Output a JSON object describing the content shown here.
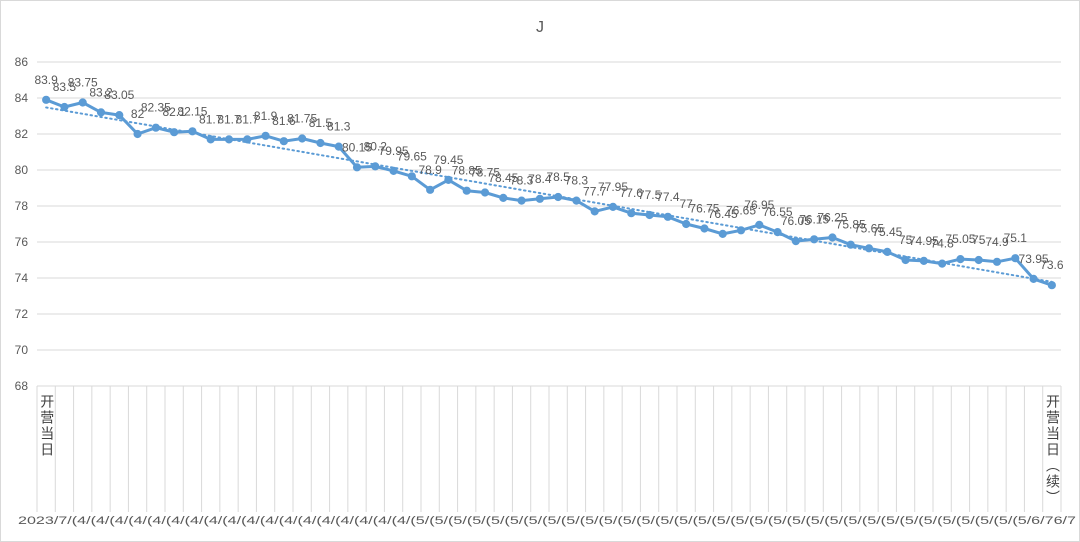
{
  "chart_data": {
    "type": "line",
    "title": "J",
    "xlabel": "",
    "ylabel": "",
    "ylim": [
      68,
      86
    ],
    "yticks": [
      68,
      70,
      72,
      74,
      76,
      78,
      80,
      82,
      84,
      86
    ],
    "grid": {
      "horizontal": true,
      "vertical": false
    },
    "legend": "none",
    "categories": [
      "开营当日",
      "",
      "",
      "",
      "",
      "",
      "",
      "",
      "",
      "",
      "",
      "",
      "",
      "",
      "",
      "",
      "",
      "",
      "",
      "",
      "",
      "",
      "",
      "",
      "",
      "",
      "",
      "",
      "",
      "",
      "",
      "",
      "",
      "",
      "",
      "",
      "",
      "",
      "",
      "",
      "",
      "",
      "",
      "",
      "",
      "",
      "",
      "",
      "",
      "",
      "",
      "",
      "",
      "",
      "",
      "开营当日（续）"
    ],
    "x_outer_labels_text": "2023/7/(4/(4/(4/(4/(4/(4/(4/(4/(4/(4/(4/(4/(4/(4/(4/(4/(4/(4/(5/(5/(5/(5/(5/(5/(5/(5/(5/(5/(5/(5/(5/(5/(5/(5/(5/(5/(5/(5/(5/(5/(5/(5/(5/(5/(5/(5/(5/(5/(5/(5/(5/6/76/7",
    "series": [
      {
        "values": [
          83.9,
          83.5,
          83.75,
          83.2,
          83.05,
          82,
          82.35,
          82.1,
          82.15,
          81.7,
          81.7,
          81.7,
          81.9,
          81.6,
          81.75,
          81.5,
          81.3,
          80.15,
          80.2,
          79.95,
          79.65,
          78.9,
          79.45,
          78.85,
          78.75,
          78.45,
          78.3,
          78.4,
          78.5,
          78.3,
          77.7,
          77.95,
          77.6,
          77.5,
          77.4,
          77,
          76.75,
          76.45,
          76.65,
          76.95,
          76.55,
          76.05,
          76.15,
          76.25,
          75.85,
          75.65,
          75.45,
          75,
          74.95,
          74.8,
          75.05,
          75,
          74.9,
          75.1,
          73.95,
          73.6
        ],
        "markers": "circle",
        "data_labels": true
      }
    ],
    "trendline": {
      "type": "linear",
      "line": "dotted"
    },
    "colors": {
      "series": "#5b9bd5",
      "text": "#595959",
      "grid": "#d9d9d9",
      "border": "#d9d9d9"
    }
  }
}
